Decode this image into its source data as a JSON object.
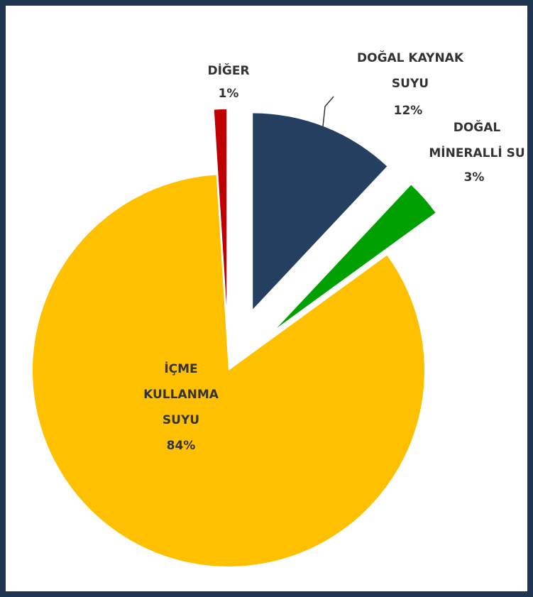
{
  "chart_data": {
    "type": "pie",
    "categories": [
      "DOĞAL KAYNAK SUYU",
      "DOĞAL MİNERALLİ SU",
      "İÇME KULLANMA SUYU",
      "DİĞER"
    ],
    "values": [
      12,
      3,
      84,
      1
    ],
    "value_labels": [
      "12%",
      "3%",
      "84%",
      "1%"
    ],
    "colors": [
      "#243f60",
      "#00a000",
      "#ffc000",
      "#c00000"
    ]
  }
}
